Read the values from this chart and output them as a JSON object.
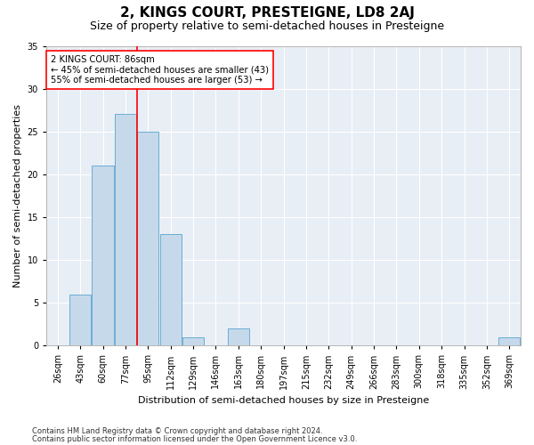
{
  "title": "2, KINGS COURT, PRESTEIGNE, LD8 2AJ",
  "subtitle": "Size of property relative to semi-detached houses in Presteigne",
  "xlabel": "Distribution of semi-detached houses by size in Presteigne",
  "ylabel": "Number of semi-detached properties",
  "categories": [
    "26sqm",
    "43sqm",
    "60sqm",
    "77sqm",
    "95sqm",
    "112sqm",
    "129sqm",
    "146sqm",
    "163sqm",
    "180sqm",
    "197sqm",
    "215sqm",
    "232sqm",
    "249sqm",
    "266sqm",
    "283sqm",
    "300sqm",
    "318sqm",
    "335sqm",
    "352sqm",
    "369sqm"
  ],
  "values": [
    0,
    6,
    21,
    27,
    25,
    13,
    1,
    0,
    2,
    0,
    0,
    0,
    0,
    0,
    0,
    0,
    0,
    0,
    0,
    0,
    1
  ],
  "bar_color": "#c6d9ea",
  "bar_edge_color": "#6aadd5",
  "property_bar_index": 3,
  "annotation_text": "2 KINGS COURT: 86sqm\n← 45% of semi-detached houses are smaller (43)\n55% of semi-detached houses are larger (53) →",
  "ylim": [
    0,
    35
  ],
  "yticks": [
    0,
    5,
    10,
    15,
    20,
    25,
    30,
    35
  ],
  "plot_bg_color": "#e8eef5",
  "title_fontsize": 11,
  "subtitle_fontsize": 9,
  "axis_label_fontsize": 8,
  "tick_fontsize": 7,
  "footer_line1": "Contains HM Land Registry data © Crown copyright and database right 2024.",
  "footer_line2": "Contains public sector information licensed under the Open Government Licence v3.0."
}
